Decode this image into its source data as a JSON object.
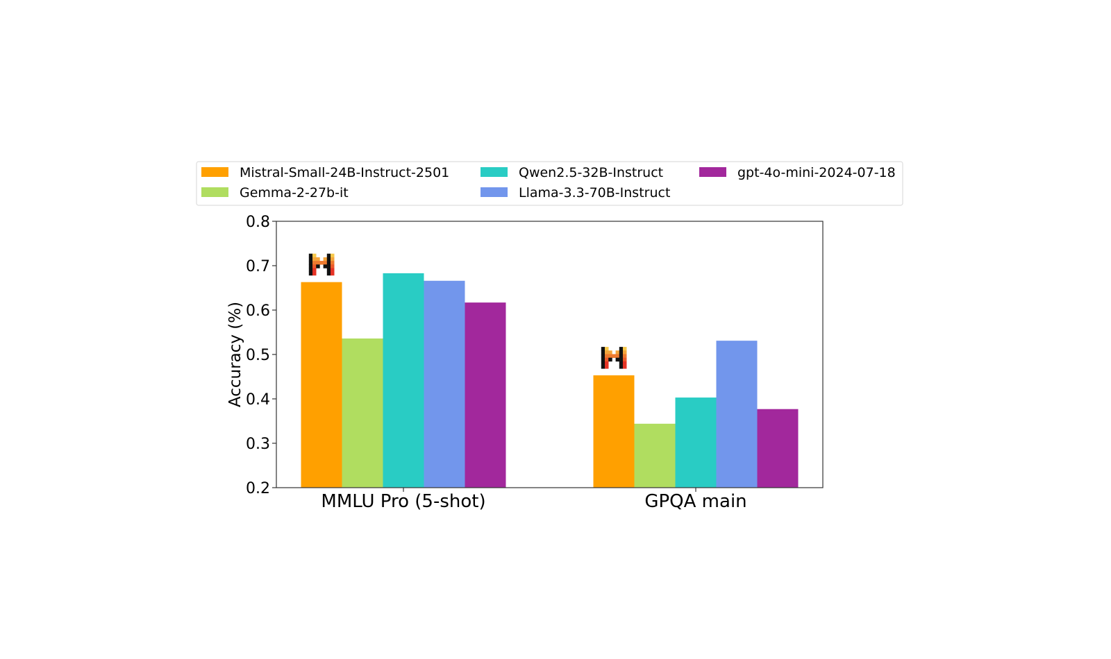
{
  "chart_data": {
    "type": "bar",
    "title": "",
    "xlabel": "",
    "ylabel": "Accuracy (%)",
    "ylim": [
      0.2,
      0.8
    ],
    "yticks": [
      "0.2",
      "0.3",
      "0.4",
      "0.5",
      "0.6",
      "0.7",
      "0.8"
    ],
    "grid": false,
    "legend_position": "top",
    "categories": [
      "MMLU Pro (5-shot)",
      "GPQA main"
    ],
    "series": [
      {
        "name": "Mistral-Small-24B-Instruct-2501",
        "color": "#ffa000",
        "values": [
          0.663,
          0.453
        ]
      },
      {
        "name": "Gemma-2-27b-it",
        "color": "#b0dd60",
        "values": [
          0.536,
          0.344
        ]
      },
      {
        "name": "Qwen2.5-32B-Instruct",
        "color": "#29ccc4",
        "values": [
          0.683,
          0.403
        ]
      },
      {
        "name": "Llama-3.3-70B-Instruct",
        "color": "#7296ec",
        "values": [
          0.666,
          0.531
        ]
      },
      {
        "name": "gpt-4o-mini-2024-07-18",
        "color": "#a2289c",
        "values": [
          0.617,
          0.377
        ]
      }
    ],
    "annotations": [
      {
        "type": "logo",
        "name": "mistral-logo",
        "above_series": "Mistral-Small-24B-Instruct-2501"
      }
    ]
  }
}
